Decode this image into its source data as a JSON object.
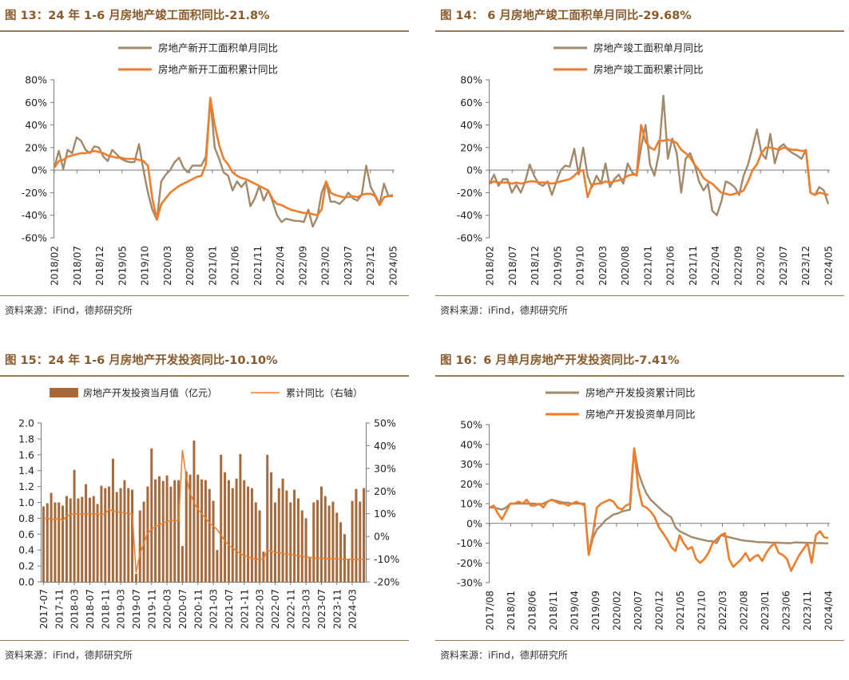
{
  "colors": {
    "brown": "#a2896a",
    "orange": "#ef7d2c",
    "bar": "#a8683a",
    "title": "#8a5a2b",
    "rule": "#9a7a57"
  },
  "panels": [
    {
      "title": "图 13：24 年 1-6 月房地产竣工面积同比-21.8%",
      "source": "资料来源：iFind，德邦研究所",
      "chart_data": {
        "type": "line",
        "title": "",
        "ylim": [
          -60,
          80
        ],
        "yticks": [
          80,
          60,
          40,
          20,
          0,
          -20,
          -40,
          -60
        ],
        "ytick_unit": "%",
        "xtick_labels": [
          "2018/02",
          "2018/07",
          "2018/12",
          "2019/05",
          "2019/10",
          "2020/03",
          "2020/08",
          "2021/01",
          "2021/06",
          "2021/11",
          "2022/04",
          "2022/09",
          "2023/02",
          "2023/07",
          "2023/12",
          "2024/05"
        ],
        "xcount": 77,
        "legend_position": "top-center",
        "series": [
          {
            "name": "房地产新开工面积单月同比",
            "color": "brown",
            "values": [
              2,
              17,
              1,
              18,
              15,
              29,
              26,
              18,
              15,
              21,
              20,
              12,
              8,
              18,
              14,
              10,
              8,
              7,
              7,
              23,
              0,
              -20,
              -35,
              -44,
              -10,
              -4,
              0,
              7,
              11,
              2,
              -2,
              4,
              4,
              4,
              12,
              64,
              20,
              10,
              -2,
              -5,
              -18,
              -10,
              -15,
              -10,
              -32,
              -25,
              -14,
              -27,
              -18,
              -28,
              -40,
              -46,
              -43,
              -44,
              -45,
              -45,
              -46,
              -35,
              -50,
              -42,
              -20,
              -10,
              -28,
              -28,
              -30,
              -26,
              -20,
              -25,
              -27,
              -22,
              4,
              -15,
              -22,
              -30,
              -12,
              -23,
              -22
            ]
          },
          {
            "name": "房地产新开工面积累计同比",
            "color": "orange",
            "values": [
              2,
              8,
              9,
              12,
              13,
              14,
              15,
              15,
              16,
              17,
              16,
              15,
              13,
              12,
              11,
              11,
              10,
              10,
              10,
              9,
              8,
              4,
              -25,
              -44,
              -30,
              -25,
              -20,
              -17,
              -14,
              -12,
              -10,
              -8,
              -6,
              -5,
              5,
              64,
              40,
              22,
              10,
              5,
              -2,
              -5,
              -7,
              -8,
              -10,
              -12,
              -14,
              -16,
              -18,
              -26,
              -30,
              -31,
              -33,
              -35,
              -36,
              -37,
              -38,
              -38,
              -39,
              -40,
              -35,
              -10,
              -20,
              -22,
              -23,
              -24,
              -24,
              -23,
              -24,
              -22,
              -21,
              -21,
              -23,
              -31,
              -24,
              -23,
              -23
            ]
          }
        ]
      }
    },
    {
      "title": "图 14：  6 月房地产竣工面积单月同比-29.68%",
      "source": "资料来源：iFind，德邦研究所",
      "chart_data": {
        "type": "line",
        "title": "",
        "ylim": [
          -60,
          80
        ],
        "yticks": [
          80,
          60,
          40,
          20,
          0,
          -20,
          -40,
          -60
        ],
        "ytick_unit": "%",
        "xtick_labels": [
          "2018/02",
          "2018/07",
          "2018/12",
          "2019/05",
          "2019/10",
          "2020/03",
          "2020/08",
          "2021/01",
          "2021/06",
          "2021/11",
          "2022/04",
          "2022/09",
          "2023/02",
          "2023/07",
          "2023/12",
          "2024/05"
        ],
        "xcount": 77,
        "legend_position": "top-center",
        "series": [
          {
            "name": "房地产竣工面积单月同比",
            "color": "brown",
            "values": [
              -12,
              -4,
              -14,
              -8,
              -8,
              -20,
              -13,
              -20,
              -10,
              5,
              -5,
              -12,
              -14,
              -10,
              -22,
              -10,
              0,
              4,
              3,
              19,
              -4,
              20,
              -5,
              -15,
              -5,
              -12,
              6,
              -15,
              -8,
              -4,
              -12,
              6,
              -2,
              -5,
              20,
              40,
              5,
              -5,
              15,
              66,
              10,
              28,
              15,
              -20,
              10,
              15,
              5,
              -10,
              -18,
              -12,
              -36,
              -40,
              -28,
              -10,
              -12,
              -15,
              -22,
              -5,
              5,
              20,
              36,
              15,
              10,
              32,
              6,
              20,
              23,
              18,
              15,
              13,
              10,
              18,
              -20,
              -22,
              -15,
              -18,
              -30
            ]
          },
          {
            "name": "房地产竣工面积累计同比",
            "color": "orange",
            "values": [
              -12,
              -10,
              -11,
              -11,
              -11,
              -12,
              -11,
              -12,
              -11,
              -10,
              -10,
              -11,
              -11,
              -11,
              -12,
              -11,
              -10,
              -9,
              -8,
              -5,
              -1,
              0,
              -24,
              -13,
              -12,
              -12,
              -10,
              -11,
              -10,
              -9,
              -8,
              -5,
              -4,
              -4,
              40,
              25,
              20,
              18,
              26,
              26,
              27,
              26,
              24,
              18,
              15,
              11,
              5,
              0,
              -7,
              -10,
              -12,
              -16,
              -20,
              -21,
              -22,
              -21,
              -20,
              -18,
              -10,
              0,
              5,
              15,
              20,
              20,
              19,
              18,
              20,
              19,
              18,
              18,
              17,
              17,
              -20,
              -22,
              -20,
              -21,
              -22
            ]
          }
        ]
      }
    },
    {
      "title": "图 15：24 年 1-6 月房地产开发投资同比-10.10%",
      "source": "资料来源：iFind，德邦研究所",
      "chart_data": {
        "type": "bar",
        "title": "",
        "ylim": [
          0,
          2.0
        ],
        "yticks": [
          "2.0",
          "1.8",
          "1.6",
          "1.4",
          "1.2",
          "1.0",
          "0.8",
          "0.6",
          "0.4",
          "0.2",
          "0.0"
        ],
        "y2lim": [
          -20,
          50
        ],
        "y2ticks": [
          50,
          40,
          30,
          20,
          10,
          0,
          -10,
          -20
        ],
        "y2tick_unit": "%",
        "xtick_labels": [
          "2017-07",
          "2017-11",
          "2018-03",
          "2018-07",
          "2018-11",
          "2019-03",
          "2019-07",
          "2019-11",
          "2020-03",
          "2020-07",
          "2020-11",
          "2021-03",
          "2021-07",
          "2021-11",
          "2022-03",
          "2022-07",
          "2022-11",
          "2023-03",
          "2023-07",
          "2023-11",
          "2024-03"
        ],
        "xcount": 84,
        "legend_position": "top-center",
        "series": [
          {
            "name": "房地产开发投资当月值（亿元）",
            "color": "bar",
            "axis": "left",
            "values": [
              0.95,
              0.99,
              1.12,
              1.0,
              1.0,
              0.96,
              1.08,
              1.05,
              1.41,
              1.05,
              1.07,
              1.23,
              1.06,
              1.08,
              0.98,
              1.21,
              1.18,
              1.2,
              1.55,
              1.13,
              1.18,
              1.28,
              1.18,
              1.16,
              0.1,
              0.9,
              1.01,
              1.2,
              1.68,
              1.29,
              1.33,
              1.27,
              1.34,
              1.2,
              1.28,
              1.28,
              0.45,
              1.39,
              1.35,
              1.78,
              1.35,
              1.29,
              1.28,
              1.17,
              1.02,
              0.4,
              1.6,
              1.38,
              1.28,
              1.18,
              1.3,
              1.61,
              1.28,
              1.2,
              1.18,
              1.0,
              0.9,
              0.38,
              1.6,
              1.38,
              1.0,
              1.18,
              1.3,
              1.15,
              1.0,
              1.16,
              1.05,
              0.9,
              0.8,
              0.3,
              1.0,
              1.03,
              1.2,
              1.08,
              0.96,
              1.01,
              0.87,
              0.75,
              0.6,
              0.28,
              1.02,
              1.17,
              1.01,
              1.18
            ]
          },
          {
            "name": "累计同比（右轴）",
            "color": "orange",
            "axis": "right",
            "values": [
              8,
              8,
              7.5,
              7.5,
              8,
              7,
              9,
              9.5,
              10,
              10,
              10,
              10,
              10,
              10,
              10,
              9.5,
              10,
              12,
              11,
              11,
              10.5,
              10.5,
              10,
              10,
              -16,
              -7.5,
              -3,
              1.5,
              3,
              4.5,
              5,
              6,
              6.5,
              7,
              7,
              7,
              38,
              26,
              19,
              15,
              12,
              10,
              8,
              6,
              4.5,
              3,
              0.7,
              -2,
              -4,
              -5,
              -6.5,
              -7.5,
              -8.5,
              -9,
              -9.5,
              -10,
              -10,
              -10,
              -6,
              -6.5,
              -7,
              -7.2,
              -7.5,
              -7.8,
              -8,
              -8.3,
              -8.5,
              -8.8,
              -9,
              -9.2,
              -9.5,
              -9.6,
              -9.6,
              -9.7,
              -9.8,
              -9.8,
              -9.9,
              -10,
              -10,
              -10,
              -10,
              -10.1,
              -10.1,
              -10.1
            ]
          }
        ]
      }
    },
    {
      "title": "图 16：6 月单月房地产开发投资同比-7.41%",
      "source": "资料来源：iFind，德邦研究所",
      "chart_data": {
        "type": "line",
        "title": "",
        "ylim": [
          -30,
          50
        ],
        "yticks": [
          50,
          40,
          30,
          20,
          10,
          0,
          -10,
          -20,
          -30
        ],
        "ytick_unit": "%",
        "xtick_labels": [
          "2017/08",
          "2018/01",
          "2018/06",
          "2018/11",
          "2019/04",
          "2019/09",
          "2020/02",
          "2020/07",
          "2020/12",
          "2021/05",
          "2021/10",
          "2022/03",
          "2022/08",
          "2023/01",
          "2023/06",
          "2023/11",
          "2024/04"
        ],
        "xcount": 83,
        "legend_position": "top-center",
        "series": [
          {
            "name": "房地产开发投资累计同比",
            "color": "brown",
            "values": [
              8,
              8,
              7.5,
              7,
              8,
              10,
              10,
              10,
              10,
              10,
              10,
              10,
              9.5,
              10,
              11,
              12,
              11.5,
              11,
              10.5,
              10.5,
              10,
              10,
              10,
              10,
              -16,
              -7.5,
              -3,
              -1,
              1.5,
              3,
              4.5,
              5,
              6,
              6.5,
              7,
              38,
              26,
              20,
              15,
              12,
              10,
              8,
              6,
              4.5,
              3,
              -2,
              -4,
              -5,
              -6,
              -7,
              -7.5,
              -8,
              -8.5,
              -9,
              -9,
              -10,
              -6,
              -6.5,
              -7,
              -7.5,
              -8,
              -8.5,
              -8.8,
              -9,
              -9.2,
              -9.5,
              -9.5,
              -9.6,
              -9.7,
              -9.8,
              -9.8,
              -9.9,
              -10,
              -10,
              -9.6,
              -9.7,
              -9.8,
              -9.8,
              -9.9,
              -10,
              -10,
              -10.1,
              -10.1
            ]
          },
          {
            "name": "房地产开发投资单月同比",
            "color": "orange",
            "values": [
              8,
              9,
              5,
              2,
              6,
              10,
              10,
              11,
              10,
              12,
              9,
              9,
              10,
              8,
              11,
              12,
              11,
              10,
              10,
              9,
              10,
              11,
              10,
              9,
              -16,
              -5,
              8,
              10,
              11,
              12,
              11,
              8,
              7,
              9,
              10,
              38,
              18,
              9,
              8,
              6,
              3,
              -2,
              -5,
              -8,
              -12,
              -14,
              -6,
              -10,
              -13,
              -12,
              -18,
              -20,
              -18,
              -15,
              -10,
              -8,
              -6,
              -5,
              -18,
              -22,
              -20,
              -18,
              -15,
              -19,
              -17,
              -16,
              -19,
              -15,
              -12,
              -10,
              -15,
              -16,
              -18,
              -24,
              -20,
              -16,
              -13,
              -10,
              -20,
              -6,
              -4,
              -7,
              -7.4
            ]
          }
        ]
      }
    }
  ]
}
